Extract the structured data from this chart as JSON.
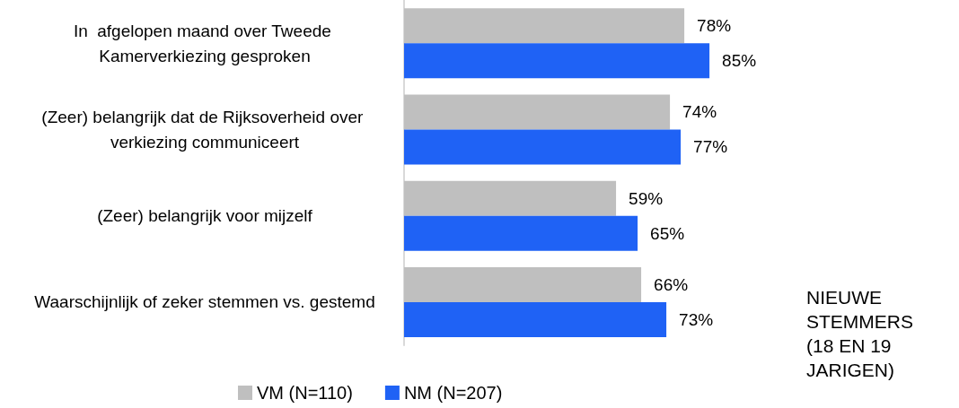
{
  "chart_data": {
    "type": "bar",
    "orientation": "horizontal",
    "categories": [
      "In  afgelopen maand over Tweede Kamerverkiezing gesproken",
      "(Zeer) belangrijk dat de Rijksoverheid over verkiezing communiceert",
      "(Zeer) belangrijk voor mijzelf",
      "Waarschijnlijk of zeker stemmen vs. gestemd"
    ],
    "series": [
      {
        "name": "VM (N=110)",
        "color": "#bfbfbf",
        "values": [
          78,
          74,
          59,
          66
        ],
        "value_labels": [
          "78%",
          "74%",
          "59%",
          "66%"
        ]
      },
      {
        "name": "NM (N=207)",
        "color": "#1f62f5",
        "values": [
          85,
          77,
          65,
          73
        ],
        "value_labels": [
          "85%",
          "77%",
          "65%",
          "73%"
        ]
      }
    ],
    "annotations": [
      "NIEUWE STEMMERS (18 EN 19 JARIGEN)"
    ],
    "legend": "bottom"
  }
}
